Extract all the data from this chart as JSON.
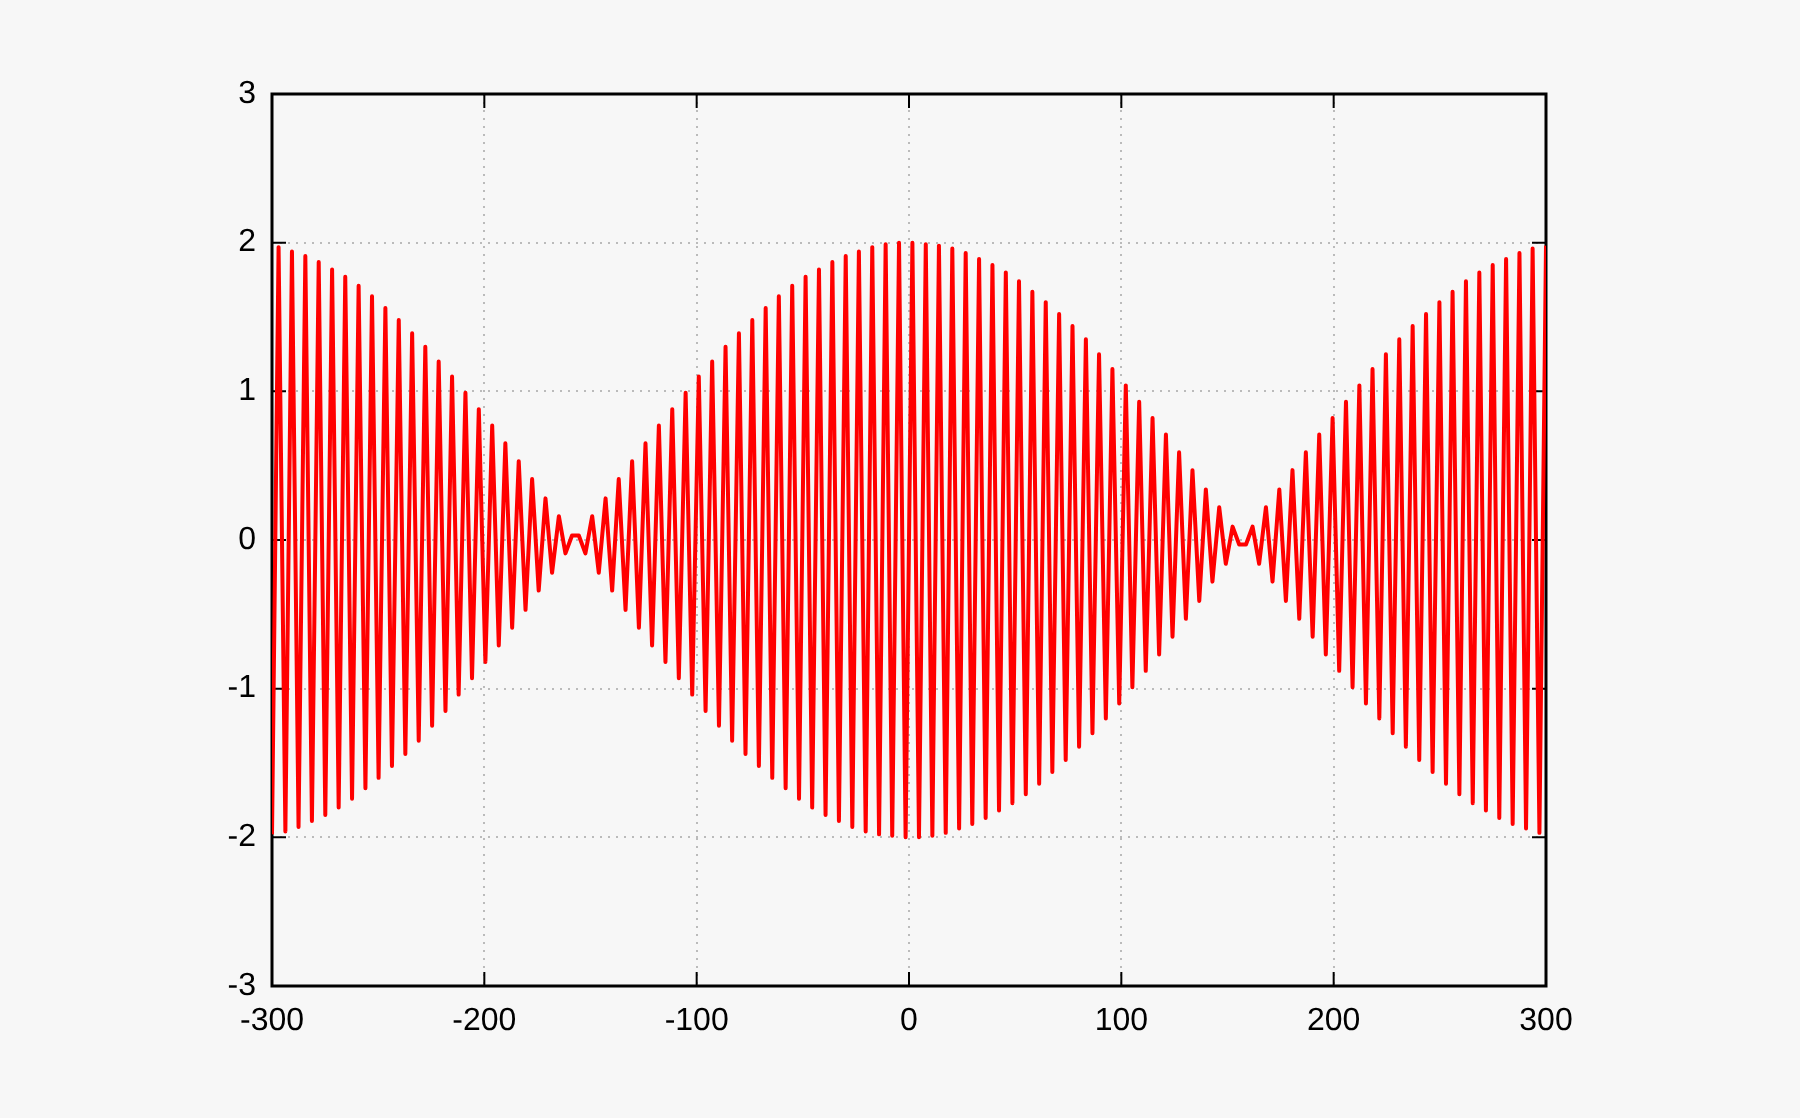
{
  "chart_data": {
    "type": "line",
    "color": "#ff0000",
    "marker": "none",
    "line_style": "solid",
    "grid": true,
    "xlim": [
      -300,
      300
    ],
    "ylim": [
      -3,
      3
    ],
    "xticks": [
      -300,
      -200,
      -100,
      0,
      100,
      200,
      300
    ],
    "yticks": [
      -3,
      -2,
      -1,
      0,
      1,
      2,
      3
    ],
    "x": [
      -300,
      -296.9,
      -293.7,
      -290.6,
      -287.5,
      -284.3,
      -281.2,
      -278.0,
      -274.9,
      -271.7,
      -268.6,
      -265.5,
      -262.3,
      -259.2,
      -256.0,
      -252.9,
      -249.8,
      -246.6,
      -243.5,
      -240.3,
      -237.2,
      -234.0,
      -230.9,
      -227.8,
      -224.6,
      -221.5,
      -218.3,
      -215.2,
      -212.1,
      -208.9,
      -205.8,
      -202.6,
      -199.5,
      -196.3,
      -193.2,
      -190.1,
      -186.9,
      -183.8,
      -180.6,
      -177.5,
      -174.4,
      -171.2,
      -168.1,
      -164.9,
      -161.8,
      -158.7,
      -155.5,
      -152.4,
      -149.2,
      -146.1,
      -142.9,
      -139.8,
      -136.7,
      -133.5,
      -130.4,
      -127.2,
      -124.1,
      -121.0,
      -117.8,
      -114.7,
      -111.5,
      -108.4,
      -105.2,
      -102.1,
      -99.0,
      -95.8,
      -92.7,
      -89.5,
      -86.4,
      -83.3,
      -80.1,
      -77.0,
      -73.8,
      -70.7,
      -67.5,
      -64.4,
      -61.3,
      -58.1,
      -55.0,
      -51.8,
      -48.7,
      -45.6,
      -42.4,
      -39.3,
      -36.1,
      -33.0,
      -29.8,
      -26.7,
      -23.6,
      -20.4,
      -17.3,
      -14.1,
      -11.0,
      -7.9,
      -4.7,
      -1.6,
      1.6,
      4.7,
      7.9,
      11.0,
      14.1,
      17.3,
      20.4,
      23.6,
      26.7,
      29.8,
      33.0,
      36.1,
      39.3,
      42.4,
      45.6,
      48.7,
      51.8,
      55.0,
      58.1,
      61.3,
      64.4,
      67.5,
      70.7,
      73.8,
      77.0,
      80.1,
      83.3,
      86.4,
      89.5,
      92.7,
      95.8,
      99.0,
      102.1,
      105.2,
      108.4,
      111.5,
      114.7,
      117.8,
      121.0,
      124.1,
      127.2,
      130.4,
      133.5,
      136.7,
      139.8,
      142.9,
      146.1,
      149.2,
      152.4,
      155.5,
      158.7,
      161.8,
      164.9,
      168.1,
      171.2,
      174.4,
      177.5,
      180.6,
      183.8,
      186.9,
      190.1,
      193.2,
      196.3,
      199.5,
      202.6,
      205.8,
      208.9,
      212.1,
      215.2,
      218.3,
      221.5,
      224.6,
      227.8,
      230.9,
      234.0,
      237.2,
      240.3,
      243.5,
      246.6,
      249.8,
      252.9,
      256.0,
      259.2,
      262.3,
      265.5,
      268.6,
      271.7,
      274.9,
      278.0,
      281.2,
      284.3,
      287.5,
      290.6,
      293.7,
      296.9,
      300
    ],
    "values": [
      -1.98,
      1.97,
      -1.96,
      1.94,
      -1.93,
      1.91,
      -1.89,
      1.87,
      -1.85,
      1.82,
      -1.8,
      1.77,
      -1.74,
      1.71,
      -1.67,
      1.64,
      -1.6,
      1.56,
      -1.52,
      1.48,
      -1.44,
      1.39,
      -1.35,
      1.3,
      -1.25,
      1.2,
      -1.15,
      1.1,
      -1.04,
      0.99,
      -0.93,
      0.88,
      -0.82,
      0.77,
      -0.71,
      0.65,
      -0.59,
      0.53,
      -0.47,
      0.41,
      -0.34,
      0.28,
      -0.22,
      0.16,
      -0.09,
      0.03,
      0.03,
      -0.09,
      0.16,
      -0.22,
      0.28,
      -0.34,
      0.41,
      -0.47,
      0.53,
      -0.59,
      0.65,
      -0.71,
      0.77,
      -0.82,
      0.88,
      -0.93,
      0.99,
      -1.04,
      1.1,
      -1.15,
      1.2,
      -1.25,
      1.3,
      -1.35,
      1.39,
      -1.44,
      1.48,
      -1.52,
      1.56,
      -1.6,
      1.64,
      -1.67,
      1.71,
      -1.74,
      1.77,
      -1.8,
      1.82,
      -1.85,
      1.87,
      -1.89,
      1.91,
      -1.93,
      1.94,
      -1.96,
      1.97,
      -1.98,
      1.99,
      -1.99,
      2.0,
      -2.0,
      2.0,
      -2.0,
      1.99,
      -1.99,
      1.98,
      -1.97,
      1.96,
      -1.94,
      1.93,
      -1.91,
      1.89,
      -1.87,
      1.85,
      -1.82,
      1.8,
      -1.77,
      1.74,
      -1.71,
      1.67,
      -1.64,
      1.6,
      -1.56,
      1.52,
      -1.48,
      1.44,
      -1.39,
      1.35,
      -1.3,
      1.25,
      -1.2,
      1.15,
      -1.1,
      1.04,
      -0.99,
      0.93,
      -0.88,
      0.82,
      -0.77,
      0.71,
      -0.65,
      0.59,
      -0.53,
      0.47,
      -0.41,
      0.34,
      -0.28,
      0.22,
      -0.16,
      0.09,
      -0.03,
      -0.03,
      0.09,
      -0.16,
      0.22,
      -0.28,
      0.34,
      -0.41,
      0.47,
      -0.53,
      0.59,
      -0.65,
      0.71,
      -0.77,
      0.82,
      -0.88,
      0.93,
      -0.99,
      1.04,
      -1.1,
      1.15,
      -1.2,
      1.25,
      -1.3,
      1.35,
      -1.39,
      1.44,
      -1.48,
      1.52,
      -1.56,
      1.6,
      -1.64,
      1.67,
      -1.71,
      1.74,
      -1.77,
      1.8,
      -1.82,
      1.85,
      -1.87,
      1.89,
      -1.91,
      1.93,
      -1.94,
      1.96,
      -1.97,
      1.98
    ]
  }
}
